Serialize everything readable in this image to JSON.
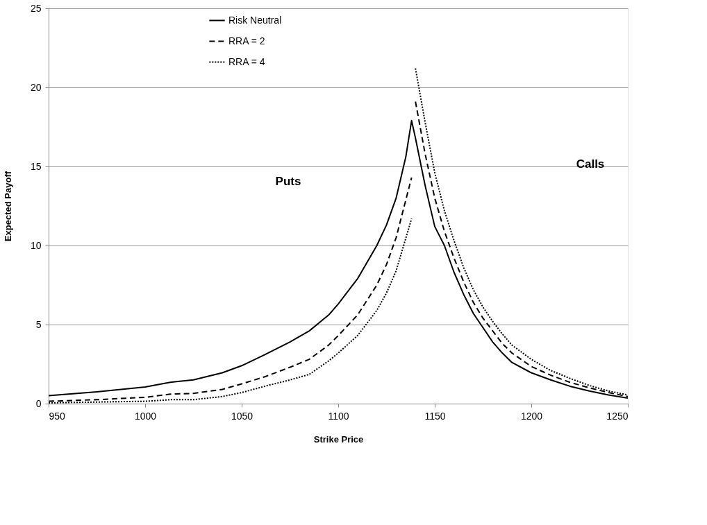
{
  "chart_data": {
    "type": "line",
    "xlabel": "Strike  Price",
    "ylabel": "Expected Payoff",
    "xlim": [
      950,
      1250
    ],
    "xticks": [
      950,
      1000,
      1050,
      1100,
      1150,
      1200,
      1250
    ],
    "ylim": [
      0,
      25
    ],
    "yticks": [
      0,
      5,
      10,
      15,
      20,
      25
    ],
    "grid": "y",
    "legend": "top left",
    "marker": "none",
    "annotations": [
      "Puts",
      "Calls"
    ],
    "series": [
      {
        "name": "Risk Neutral",
        "color": "#000000",
        "line_style": "solid",
        "x": [
          950,
          975,
          1000,
          1013,
          1025,
          1040,
          1050,
          1062,
          1075,
          1085,
          1095,
          1100,
          1110,
          1120,
          1125,
          1130,
          1135,
          1138,
          1140,
          1145,
          1150,
          1155,
          1160,
          1165,
          1170,
          1175,
          1180,
          1185,
          1190,
          1200,
          1210,
          1220,
          1230,
          1240,
          1250
        ],
        "values": [
          0.5,
          0.75,
          1.05,
          1.35,
          1.5,
          1.95,
          2.4,
          3.1,
          3.9,
          4.6,
          5.6,
          6.3,
          7.9,
          10.0,
          11.3,
          13.0,
          15.6,
          17.9,
          16.8,
          13.8,
          11.2,
          10.0,
          8.3,
          6.9,
          5.7,
          4.8,
          3.9,
          3.2,
          2.6,
          1.95,
          1.5,
          1.1,
          0.8,
          0.55,
          0.35
        ]
      },
      {
        "name": "RRA = 2",
        "color": "#000000",
        "line_style": "dashed",
        "x": [
          950,
          975,
          1000,
          1013,
          1025,
          1040,
          1050,
          1062,
          1075,
          1085,
          1095,
          1100,
          1110,
          1120,
          1125,
          1130,
          1138,
          1139,
          1140,
          1145,
          1150,
          1155,
          1160,
          1165,
          1170,
          1175,
          1180,
          1185,
          1190,
          1200,
          1210,
          1220,
          1230,
          1240,
          1250
        ],
        "values": [
          0.15,
          0.25,
          0.4,
          0.6,
          0.65,
          0.9,
          1.25,
          1.7,
          2.3,
          2.8,
          3.7,
          4.3,
          5.6,
          7.5,
          8.8,
          10.5,
          14.3,
          null,
          19.1,
          15.8,
          13.0,
          10.9,
          9.2,
          7.7,
          6.4,
          5.4,
          4.6,
          3.8,
          3.2,
          2.35,
          1.8,
          1.35,
          1.0,
          0.7,
          0.45
        ]
      },
      {
        "name": "RRA = 4",
        "color": "#000000",
        "line_style": "dotted",
        "x": [
          950,
          975,
          1000,
          1013,
          1025,
          1040,
          1050,
          1062,
          1075,
          1085,
          1095,
          1100,
          1110,
          1120,
          1125,
          1130,
          1138,
          1139,
          1140,
          1145,
          1150,
          1155,
          1160,
          1165,
          1170,
          1175,
          1180,
          1185,
          1190,
          1200,
          1210,
          1220,
          1230,
          1240,
          1250
        ],
        "values": [
          0.05,
          0.1,
          0.15,
          0.25,
          0.25,
          0.45,
          0.7,
          1.1,
          1.5,
          1.85,
          2.7,
          3.2,
          4.3,
          5.9,
          7.0,
          8.4,
          11.7,
          null,
          21.2,
          17.8,
          14.6,
          12.2,
          10.3,
          8.6,
          7.2,
          6.1,
          5.2,
          4.4,
          3.7,
          2.8,
          2.1,
          1.6,
          1.15,
          0.8,
          0.55
        ]
      }
    ]
  }
}
